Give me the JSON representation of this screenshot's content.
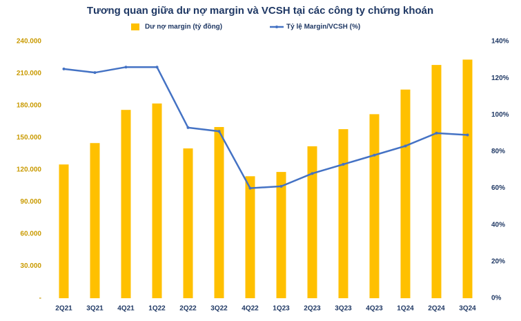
{
  "chart_data": {
    "type": "bar-line",
    "title": "Tương quan giữa dư nợ margin và VCSH tại các công ty chứng khoán",
    "categories": [
      "2Q21",
      "3Q21",
      "4Q21",
      "1Q22",
      "2Q22",
      "3Q22",
      "4Q22",
      "1Q23",
      "2Q23",
      "3Q23",
      "4Q23",
      "1Q24",
      "2Q24",
      "3Q24"
    ],
    "series": [
      {
        "name": "Dư nợ margin (tỷ đồng)",
        "type": "bar",
        "color": "#ffc000",
        "values": [
          125000,
          145000,
          176000,
          182000,
          140000,
          160000,
          114000,
          118000,
          142000,
          158000,
          172000,
          195000,
          218000,
          223000
        ]
      },
      {
        "name": "Tỷ lệ Margin/VCSH (%)",
        "type": "line",
        "axis": "y2",
        "color": "#4472c4",
        "values": [
          125,
          123,
          126,
          126,
          93,
          91,
          60,
          61,
          68,
          73,
          78,
          83,
          90,
          89
        ]
      }
    ],
    "ylim": [
      0,
      240000
    ],
    "yticks": [
      {
        "value": 0,
        "label": "-"
      },
      {
        "value": 30000,
        "label": "30.000"
      },
      {
        "value": 60000,
        "label": "60.000"
      },
      {
        "value": 90000,
        "label": "90.000"
      },
      {
        "value": 120000,
        "label": "120.000"
      },
      {
        "value": 150000,
        "label": "150.000"
      },
      {
        "value": 180000,
        "label": "180.000"
      },
      {
        "value": 210000,
        "label": "210.000"
      },
      {
        "value": 240000,
        "label": "240.000"
      }
    ],
    "y2lim": [
      0,
      140
    ],
    "y2ticks": [
      {
        "value": 0,
        "label": "0%"
      },
      {
        "value": 20,
        "label": "20%"
      },
      {
        "value": 40,
        "label": "40%"
      },
      {
        "value": 60,
        "label": "60%"
      },
      {
        "value": 80,
        "label": "80%"
      },
      {
        "value": 100,
        "label": "100%"
      },
      {
        "value": 120,
        "label": "120%"
      },
      {
        "value": 140,
        "label": "140%"
      }
    ],
    "legend": "top"
  }
}
